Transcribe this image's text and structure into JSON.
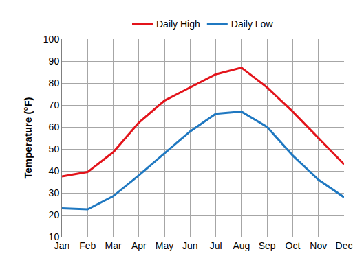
{
  "chart_data": {
    "type": "line",
    "y_label": "Temperature (°F)",
    "categories": [
      "Jan",
      "Feb",
      "Mar",
      "Apr",
      "May",
      "Jun",
      "Jul",
      "Aug",
      "Sep",
      "Oct",
      "Nov",
      "Dec"
    ],
    "series": [
      {
        "name": "Daily High",
        "color": "#e3141b",
        "values": [
          37.5,
          39.5,
          48.5,
          62,
          72,
          78,
          84,
          87,
          78,
          67,
          55,
          43
        ]
      },
      {
        "name": "Daily Low",
        "color": "#1f78c1",
        "values": [
          23,
          22.5,
          28.5,
          38,
          48,
          58,
          66,
          67,
          60,
          47,
          36,
          28
        ]
      }
    ],
    "ylim": [
      10,
      100
    ],
    "yticks": [
      10,
      20,
      30,
      40,
      50,
      60,
      70,
      80,
      90,
      100
    ],
    "grid": true,
    "legend": "top"
  }
}
